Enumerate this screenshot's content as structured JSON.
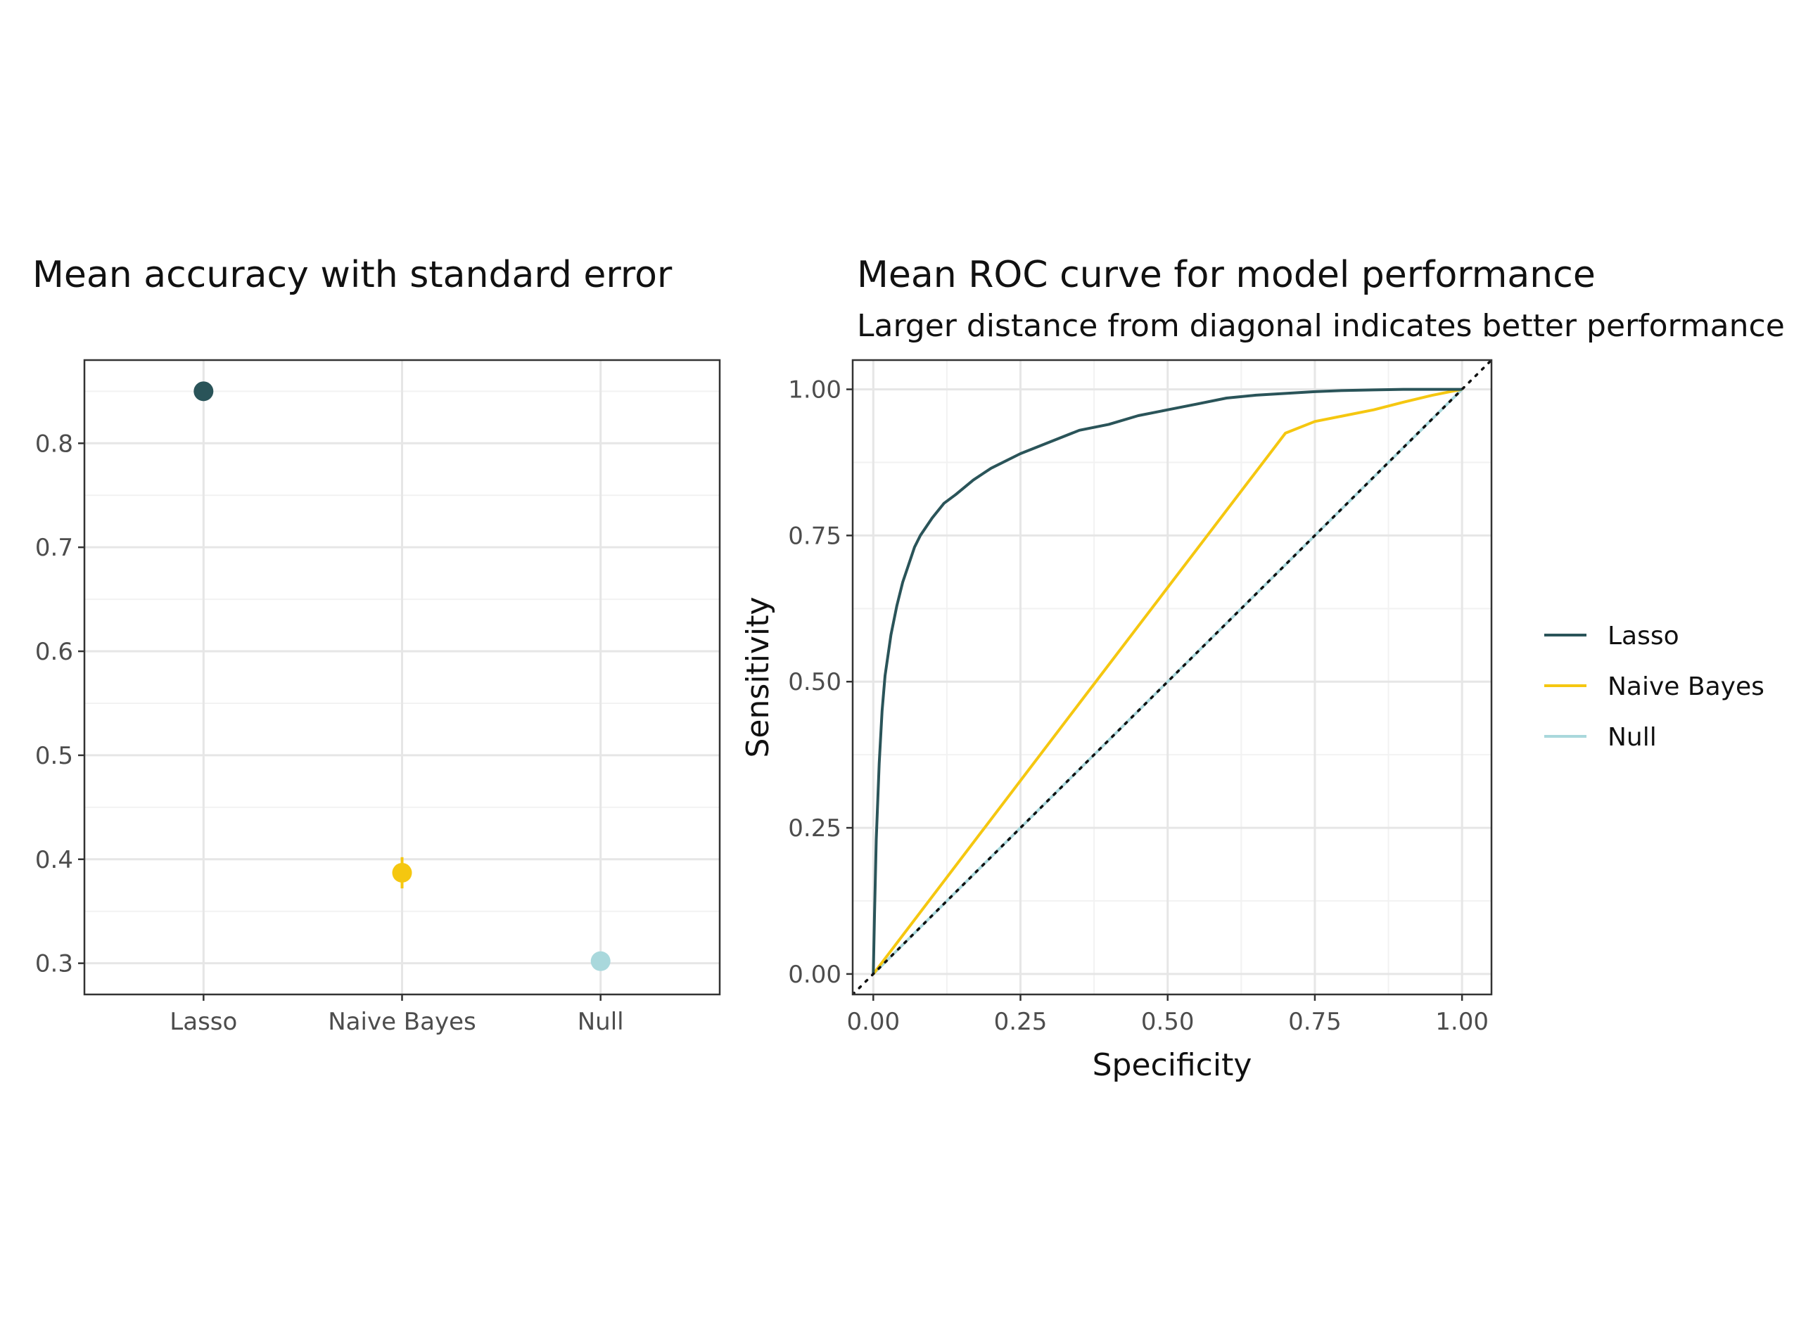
{
  "colors": {
    "lasso": "#2a5459",
    "naive_bayes": "#f5c710",
    "null": "#a9d8dc"
  },
  "chart_data": [
    {
      "type": "scatter",
      "title": "Mean accuracy with standard error",
      "xlabel": "",
      "ylabel": "",
      "categories": [
        "Lasso",
        "Naive Bayes",
        "Null"
      ],
      "values": [
        0.85,
        0.387,
        0.302
      ],
      "std_error": [
        0.002,
        0.015,
        0.004
      ],
      "ylim": [
        0.27,
        0.88
      ],
      "yticks": [
        "0.3",
        "0.4",
        "0.5",
        "0.6",
        "0.7",
        "0.8"
      ],
      "grid": true
    },
    {
      "type": "line",
      "title": "Mean ROC curve for model performance",
      "subtitle": "Larger distance from diagonal indicates better performance",
      "xlabel": "Specificity",
      "ylabel": "Sensitivity",
      "xlim": [
        -0.035,
        1.05
      ],
      "ylim": [
        -0.035,
        1.05
      ],
      "xticks": [
        "0.00",
        "0.25",
        "0.50",
        "0.75",
        "1.00"
      ],
      "yticks": [
        "0.00",
        "0.25",
        "0.50",
        "0.75",
        "1.00"
      ],
      "reference_line": "diagonal",
      "grid": true,
      "legend_position": "right",
      "series": [
        {
          "name": "Lasso",
          "x": [
            0,
            0.002,
            0.005,
            0.01,
            0.015,
            0.02,
            0.03,
            0.04,
            0.05,
            0.06,
            0.07,
            0.08,
            0.1,
            0.12,
            0.14,
            0.17,
            0.2,
            0.25,
            0.3,
            0.35,
            0.4,
            0.45,
            0.5,
            0.55,
            0.6,
            0.65,
            0.7,
            0.75,
            0.8,
            0.85,
            0.9,
            0.95,
            1.0
          ],
          "y": [
            0,
            0.1,
            0.23,
            0.36,
            0.45,
            0.51,
            0.58,
            0.63,
            0.67,
            0.7,
            0.73,
            0.75,
            0.78,
            0.805,
            0.82,
            0.845,
            0.865,
            0.89,
            0.91,
            0.93,
            0.94,
            0.955,
            0.965,
            0.975,
            0.985,
            0.99,
            0.993,
            0.996,
            0.998,
            0.999,
            1.0,
            1.0,
            1.0
          ]
        },
        {
          "name": "Naive Bayes",
          "x": [
            0,
            0.35,
            0.7,
            0.75,
            0.8,
            0.85,
            0.9,
            0.95,
            1.0
          ],
          "y": [
            0,
            0.463,
            0.925,
            0.945,
            0.955,
            0.965,
            0.978,
            0.99,
            1.0
          ]
        },
        {
          "name": "Null",
          "x": [
            0,
            1.0
          ],
          "y": [
            0,
            1.0
          ]
        }
      ]
    }
  ]
}
